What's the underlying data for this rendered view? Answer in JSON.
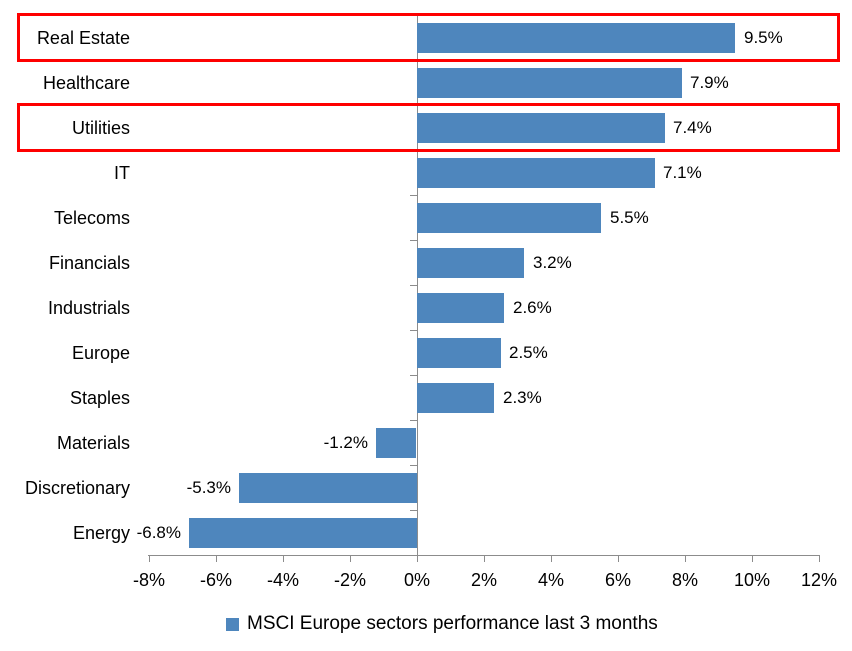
{
  "chart_data": {
    "type": "bar",
    "orientation": "horizontal",
    "legend": "MSCI Europe sectors performance last 3 months",
    "legend_position": "bottom-center",
    "categories": [
      "Real Estate",
      "Healthcare",
      "Utilities",
      "IT",
      "Telecoms",
      "Financials",
      "Industrials",
      "Europe",
      "Staples",
      "Materials",
      "Discretionary",
      "Energy"
    ],
    "values": [
      9.5,
      7.9,
      7.4,
      7.1,
      5.5,
      3.2,
      2.6,
      2.5,
      2.3,
      -1.2,
      -5.3,
      -6.8
    ],
    "data_labels": [
      "9.5%",
      "7.9%",
      "7.4%",
      "7.1%",
      "5.5%",
      "3.2%",
      "2.6%",
      "2.5%",
      "2.3%",
      "-1.2%",
      "-5.3%",
      "-6.8%"
    ],
    "x_ticks": [
      {
        "v": -8,
        "label": "-8%"
      },
      {
        "v": -6,
        "label": "-6%"
      },
      {
        "v": -4,
        "label": "-4%"
      },
      {
        "v": -2,
        "label": "-2%"
      },
      {
        "v": 0,
        "label": "0%"
      },
      {
        "v": 2,
        "label": "2%"
      },
      {
        "v": 4,
        "label": "4%"
      },
      {
        "v": 6,
        "label": "6%"
      },
      {
        "v": 8,
        "label": "8%"
      },
      {
        "v": 10,
        "label": "10%"
      },
      {
        "v": 12,
        "label": "12%"
      }
    ],
    "xlim": [
      -8,
      12
    ],
    "grid": false,
    "bar_color": "#4E86BD",
    "axis_color": "#8C8C8C",
    "highlight_color": "#FE0000",
    "highlighted_categories": [
      "Real Estate",
      "Utilities"
    ]
  }
}
